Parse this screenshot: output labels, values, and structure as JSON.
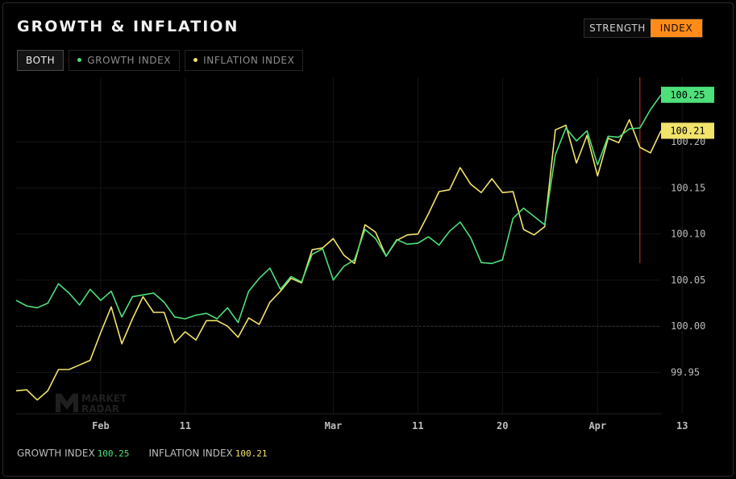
{
  "title": "GROWTH & INFLATION",
  "mode_toggle": {
    "strength_label": "STRENGTH",
    "index_label": "INDEX"
  },
  "filters": {
    "both_label": "BOTH",
    "growth_label": "GROWTH INDEX",
    "inflation_label": "INFLATION INDEX"
  },
  "watermark": "MARKET RADAR",
  "colors": {
    "growth": "#4ee07a",
    "inflation": "#f2e36b",
    "accent": "#ff8c1a",
    "cursor": "#b02a22"
  },
  "footer": {
    "growth_label": "GROWTH INDEX",
    "growth_value": "100.25",
    "inflation_label": "INFLATION INDEX",
    "inflation_value": "100.21"
  },
  "chart_data": {
    "type": "line",
    "title": "GROWTH & INFLATION",
    "xlabel": "",
    "ylabel": "",
    "ylim": [
      99.905,
      100.27
    ],
    "y_ticks": [
      99.95,
      100.0,
      100.05,
      100.1,
      100.15,
      100.2
    ],
    "y_tick_labels": [
      "99.95",
      "100.00",
      "100.05",
      "100.10",
      "100.15",
      "100.20"
    ],
    "x_ticks": [
      {
        "label": "Feb",
        "index": 8
      },
      {
        "label": "11",
        "index": 16
      },
      {
        "label": "Mar",
        "index": 30
      },
      {
        "label": "11",
        "index": 38
      },
      {
        "label": "20",
        "index": 46
      },
      {
        "label": "Apr",
        "index": 55
      },
      {
        "label": "13",
        "index": 63
      }
    ],
    "baseline": 100.0,
    "cursor_index": 59,
    "series": [
      {
        "name": "GROWTH INDEX",
        "last_value_label": "100.25",
        "values": [
          100.028,
          100.022,
          100.02,
          100.025,
          100.046,
          100.036,
          100.023,
          100.04,
          100.028,
          100.038,
          100.01,
          100.032,
          100.034,
          100.036,
          100.026,
          100.01,
          100.008,
          100.012,
          100.014,
          100.008,
          100.02,
          100.004,
          100.038,
          100.052,
          100.063,
          100.04,
          100.054,
          100.048,
          100.078,
          100.084,
          100.05,
          100.065,
          100.072,
          100.105,
          100.095,
          100.076,
          100.094,
          100.089,
          100.09,
          100.097,
          100.088,
          100.103,
          100.113,
          100.096,
          100.069,
          100.068,
          100.072,
          100.117,
          100.128,
          100.119,
          100.11,
          100.186,
          100.215,
          100.201,
          100.212,
          100.175,
          100.206,
          100.205,
          100.214,
          100.215,
          100.235,
          100.251
        ]
      },
      {
        "name": "INFLATION INDEX",
        "last_value_label": "100.21",
        "values": [
          99.93,
          99.931,
          99.92,
          99.93,
          99.953,
          99.953,
          99.958,
          99.963,
          99.993,
          100.021,
          99.981,
          100.008,
          100.032,
          100.015,
          100.015,
          99.982,
          99.994,
          99.985,
          100.006,
          100.006,
          100.0,
          99.988,
          100.009,
          100.002,
          100.026,
          100.038,
          100.052,
          100.047,
          100.083,
          100.085,
          100.095,
          100.077,
          100.068,
          100.11,
          100.102,
          100.076,
          100.093,
          100.099,
          100.1,
          100.122,
          100.146,
          100.148,
          100.172,
          100.154,
          100.145,
          100.16,
          100.145,
          100.146,
          100.105,
          100.099,
          100.108,
          100.213,
          100.218,
          100.177,
          100.207,
          100.163,
          100.204,
          100.199,
          100.224,
          100.194,
          100.188,
          100.212
        ]
      }
    ]
  }
}
